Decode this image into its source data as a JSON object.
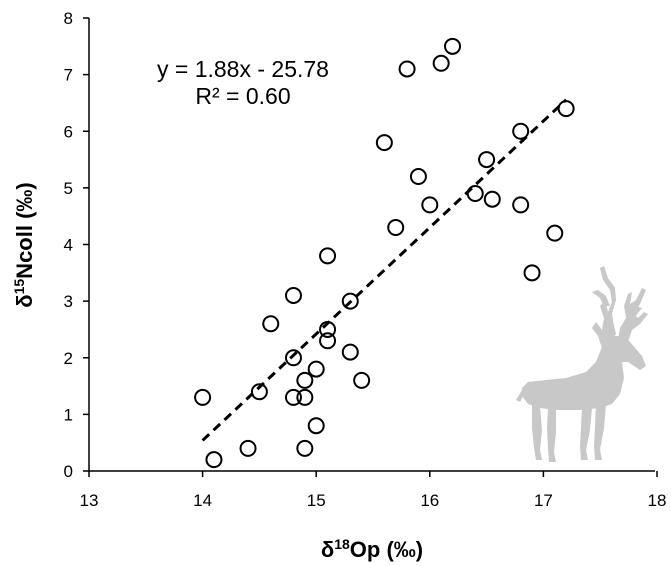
{
  "chart_data": {
    "type": "scatter",
    "xlim": [
      13,
      18
    ],
    "ylim": [
      0,
      8
    ],
    "xticks": [
      "13",
      "14",
      "15",
      "16",
      "17",
      "18"
    ],
    "yticks": [
      "0",
      "1",
      "2",
      "3",
      "4",
      "5",
      "6",
      "7",
      "8"
    ],
    "xlabel": {
      "prefix": "δ",
      "sup": "18",
      "main": "Op (‰)"
    },
    "ylabel": {
      "prefix": "δ",
      "sup": "15",
      "main": "Ncoll (‰)"
    },
    "grid": false,
    "annotations": {
      "equation": "y = 1.88x - 25.78",
      "r2": "R² = 0.60"
    },
    "trendline": {
      "slope": 1.88,
      "intercept": -25.78,
      "x_range": [
        14.0,
        17.2
      ],
      "style": "dashed"
    },
    "points": [
      {
        "x": 14.0,
        "y": 1.3
      },
      {
        "x": 14.1,
        "y": 0.2
      },
      {
        "x": 14.4,
        "y": 0.4
      },
      {
        "x": 14.5,
        "y": 1.4
      },
      {
        "x": 14.6,
        "y": 2.6
      },
      {
        "x": 14.8,
        "y": 3.1
      },
      {
        "x": 14.8,
        "y": 2.0
      },
      {
        "x": 14.8,
        "y": 1.3
      },
      {
        "x": 14.9,
        "y": 1.6
      },
      {
        "x": 14.9,
        "y": 1.3
      },
      {
        "x": 14.9,
        "y": 0.4
      },
      {
        "x": 15.0,
        "y": 1.8
      },
      {
        "x": 15.0,
        "y": 0.8
      },
      {
        "x": 15.1,
        "y": 3.8
      },
      {
        "x": 15.1,
        "y": 2.5
      },
      {
        "x": 15.1,
        "y": 2.3
      },
      {
        "x": 15.3,
        "y": 3.0
      },
      {
        "x": 15.3,
        "y": 2.1
      },
      {
        "x": 15.4,
        "y": 1.6
      },
      {
        "x": 15.6,
        "y": 5.8
      },
      {
        "x": 15.7,
        "y": 4.3
      },
      {
        "x": 15.8,
        "y": 7.1
      },
      {
        "x": 15.9,
        "y": 5.2
      },
      {
        "x": 16.0,
        "y": 4.7
      },
      {
        "x": 16.1,
        "y": 7.2
      },
      {
        "x": 16.2,
        "y": 7.5
      },
      {
        "x": 16.4,
        "y": 4.9
      },
      {
        "x": 16.5,
        "y": 5.5
      },
      {
        "x": 16.55,
        "y": 4.8
      },
      {
        "x": 16.8,
        "y": 6.0
      },
      {
        "x": 16.8,
        "y": 4.7
      },
      {
        "x": 16.9,
        "y": 3.5
      },
      {
        "x": 17.1,
        "y": 4.2
      },
      {
        "x": 17.2,
        "y": 6.4
      }
    ],
    "colors": {
      "marker": "#000000",
      "trendline": "#000000",
      "silhouette": "#c8c8c8"
    },
    "marker": "open-circle",
    "icon": "elk-silhouette-icon"
  }
}
